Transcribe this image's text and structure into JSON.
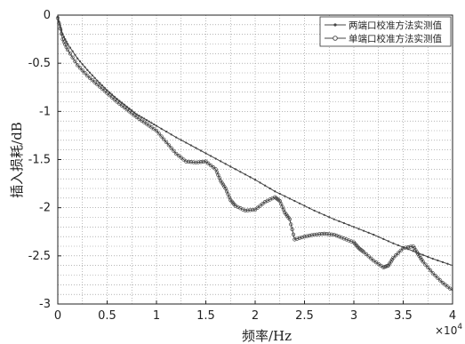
{
  "chart_data": {
    "type": "line",
    "xlabel": "频率/Hz",
    "ylabel": "插入损耗/dB",
    "x_exponent_label": "×10",
    "x_exponent_power": "4",
    "xlim": [
      0,
      4
    ],
    "ylim": [
      -3,
      0
    ],
    "x_ticks": [
      0,
      0.5,
      1,
      1.5,
      2,
      2.5,
      3,
      3.5,
      4
    ],
    "x_tick_labels": [
      "0",
      "0.5",
      "1",
      "1.5",
      "2",
      "2.5",
      "3",
      "3.5",
      "4"
    ],
    "y_ticks": [
      0,
      -0.5,
      -1,
      -1.5,
      -2,
      -2.5,
      -3
    ],
    "y_tick_labels": [
      "0",
      "-0.5",
      "-1",
      "-1.5",
      "-2",
      "-2.5",
      "-3"
    ],
    "grid": true,
    "legend_position": "top-right",
    "series": [
      {
        "name": "两端口校准方法实测值",
        "marker": "dot",
        "color": "#444444",
        "x": [
          0,
          0.05,
          0.1,
          0.2,
          0.3,
          0.4,
          0.5,
          0.6,
          0.7,
          0.8,
          0.9,
          1.0,
          1.2,
          1.4,
          1.6,
          1.8,
          2.0,
          2.2,
          2.4,
          2.6,
          2.8,
          3.0,
          3.2,
          3.4,
          3.6,
          3.8,
          4.0
        ],
        "y": [
          -0.02,
          -0.2,
          -0.3,
          -0.45,
          -0.57,
          -0.68,
          -0.78,
          -0.87,
          -0.95,
          -1.03,
          -1.09,
          -1.15,
          -1.27,
          -1.38,
          -1.49,
          -1.6,
          -1.71,
          -1.83,
          -1.93,
          -2.03,
          -2.12,
          -2.2,
          -2.28,
          -2.37,
          -2.45,
          -2.53,
          -2.6
        ]
      },
      {
        "name": "单端口校准方法实测值",
        "marker": "circle",
        "color": "#444444",
        "x": [
          0,
          0.05,
          0.1,
          0.2,
          0.3,
          0.4,
          0.5,
          0.6,
          0.7,
          0.8,
          0.9,
          1.0,
          1.1,
          1.2,
          1.3,
          1.4,
          1.5,
          1.6,
          1.65,
          1.7,
          1.75,
          1.8,
          1.9,
          2.0,
          2.1,
          2.2,
          2.25,
          2.3,
          2.35,
          2.4,
          2.5,
          2.6,
          2.7,
          2.8,
          2.9,
          3.0,
          3.05,
          3.1,
          3.2,
          3.3,
          3.35,
          3.4,
          3.5,
          3.6,
          3.65,
          3.7,
          3.8,
          3.9,
          4.0
        ],
        "y": [
          -0.03,
          -0.25,
          -0.36,
          -0.52,
          -0.63,
          -0.72,
          -0.81,
          -0.9,
          -0.98,
          -1.06,
          -1.13,
          -1.2,
          -1.32,
          -1.44,
          -1.52,
          -1.53,
          -1.52,
          -1.6,
          -1.72,
          -1.8,
          -1.92,
          -1.98,
          -2.03,
          -2.02,
          -1.94,
          -1.89,
          -1.93,
          -2.05,
          -2.12,
          -2.33,
          -2.3,
          -2.28,
          -2.27,
          -2.28,
          -2.32,
          -2.36,
          -2.42,
          -2.46,
          -2.55,
          -2.62,
          -2.6,
          -2.52,
          -2.42,
          -2.4,
          -2.48,
          -2.56,
          -2.68,
          -2.78,
          -2.86
        ]
      }
    ]
  }
}
